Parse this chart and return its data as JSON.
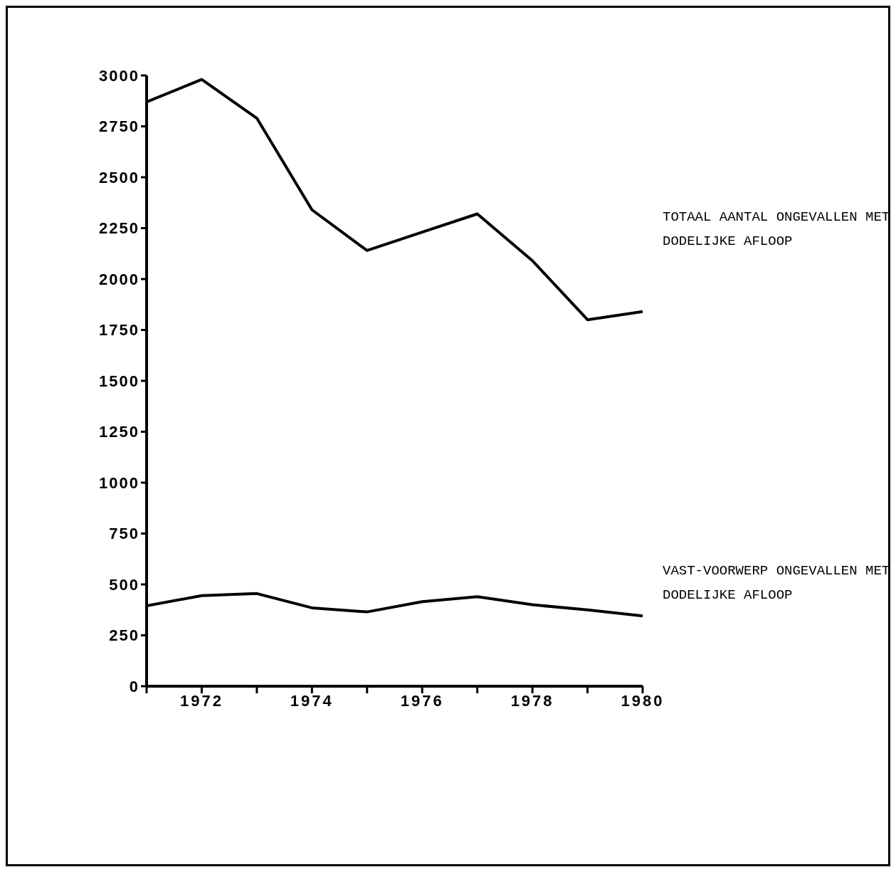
{
  "chart_data": {
    "type": "line",
    "x": [
      1971,
      1972,
      1973,
      1974,
      1975,
      1976,
      1977,
      1978,
      1979,
      1980
    ],
    "series": [
      {
        "name": "TOTAAL AANTAL ONGEVALLEN MET DODELIJKE AFLOOP",
        "color": "#000000",
        "values": [
          2870,
          2980,
          2790,
          2340,
          2140,
          2230,
          2320,
          2090,
          1800,
          1840
        ]
      },
      {
        "name": "VAST-VOORWERP ONGEVALLEN MET DODELIJKE AFLOOP",
        "color": "#000000",
        "values": [
          395,
          445,
          455,
          385,
          365,
          415,
          440,
          400,
          375,
          345
        ]
      }
    ],
    "xlim": [
      1971,
      1980
    ],
    "xticks": [
      {
        "value": 1971,
        "label": null
      },
      1972,
      {
        "value": 1973,
        "label": null
      },
      1974,
      {
        "value": 1975,
        "label": null
      },
      1976,
      {
        "value": 1977,
        "label": null
      },
      1978,
      {
        "value": 1979,
        "label": null
      },
      1980
    ],
    "ylim": [
      0,
      3000
    ],
    "yticks": [
      0,
      250,
      500,
      750,
      1000,
      1250,
      1500,
      1750,
      2000,
      2250,
      2500,
      2750,
      3000
    ],
    "grid": false,
    "legend": false,
    "marker": "none",
    "line_style": "solid"
  }
}
